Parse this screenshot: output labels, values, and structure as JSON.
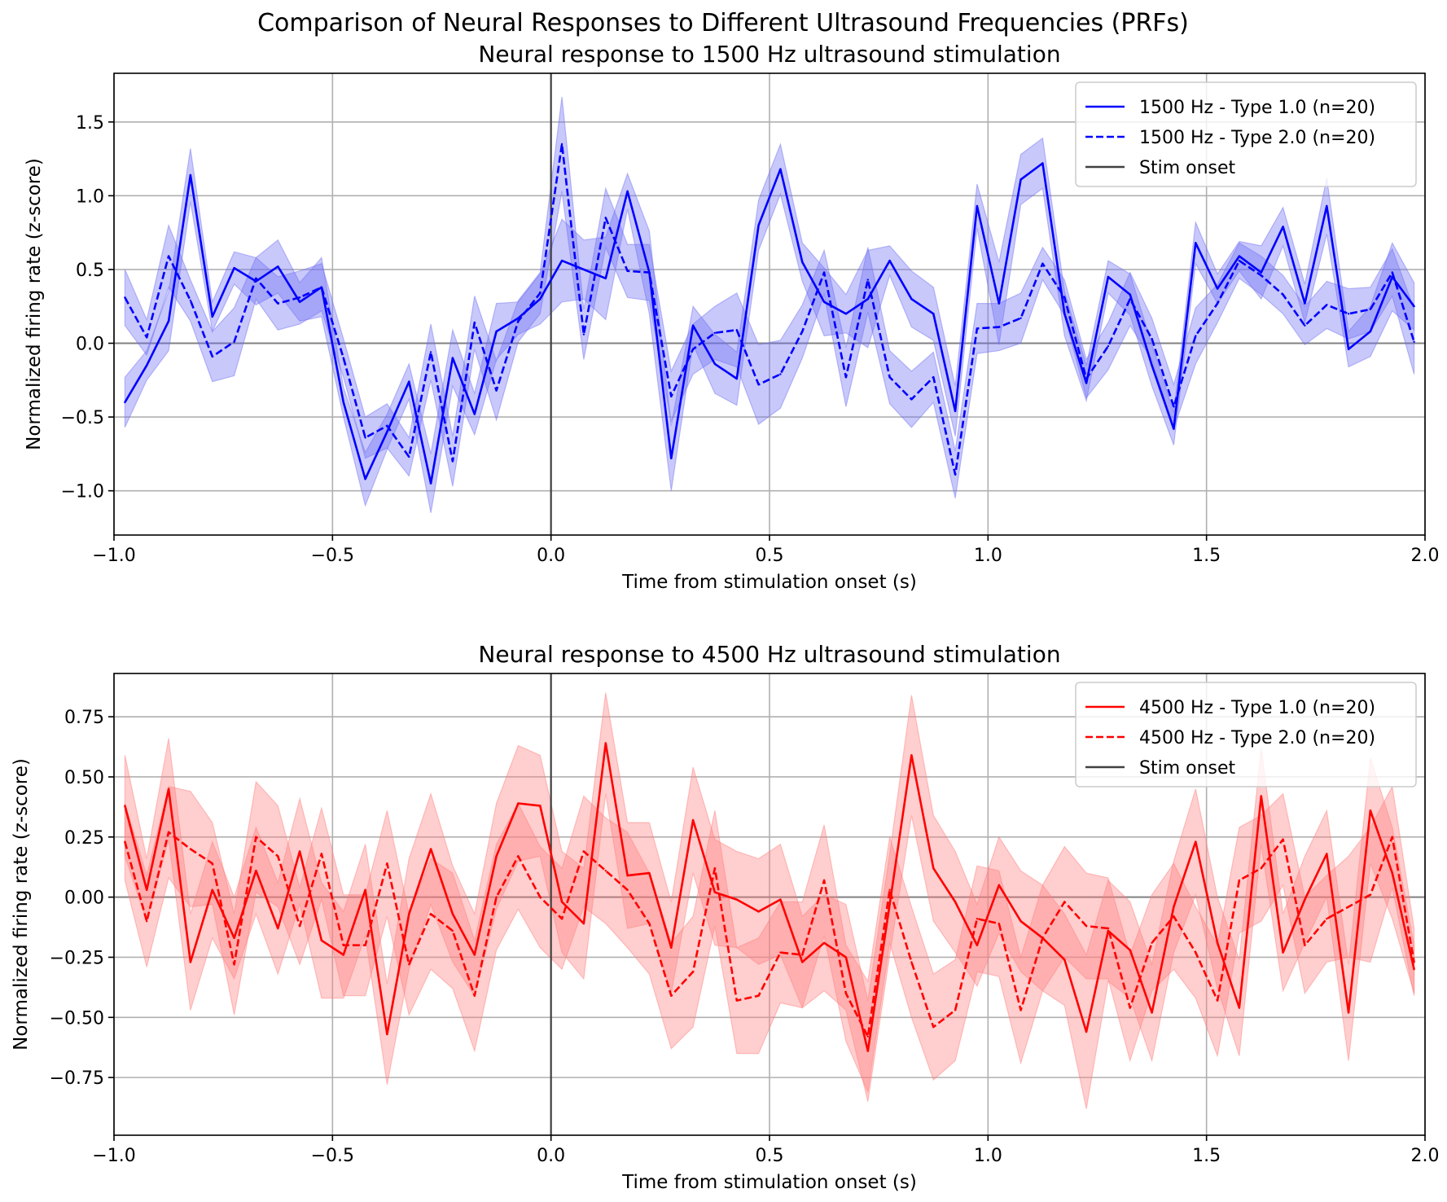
{
  "figure": {
    "suptitle": "Comparison of Neural Responses to Different Ultrasound Frequencies (PRFs)"
  },
  "chart_data": [
    {
      "type": "line",
      "title": "Neural response to 1500 Hz ultrasound stimulation",
      "xlabel": "Time from stimulation onset (s)",
      "ylabel": "Normalized firing rate (z-score)",
      "xlim": [
        -1.0,
        2.0
      ],
      "ylim": [
        -1.3,
        1.83
      ],
      "xticks": [
        -1.0,
        -0.5,
        0.0,
        0.5,
        1.0,
        1.5,
        2.0
      ],
      "xtick_labels": [
        "−1.0",
        "−0.5",
        "0.0",
        "0.5",
        "1.0",
        "1.5",
        "2.0"
      ],
      "yticks": [
        -1.0,
        -0.5,
        0.0,
        0.5,
        1.0,
        1.5
      ],
      "ytick_labels": [
        "−1.0",
        "−0.5",
        "0.0",
        "0.5",
        "1.0",
        "1.5"
      ],
      "grid": true,
      "legend_position": "top-right",
      "color": "#0000ff",
      "band_color": "#6f6ff5",
      "stim_onset": {
        "x": 0.0,
        "label": "Stim onset",
        "color": "#404040"
      },
      "x": [
        -0.975,
        -0.925,
        -0.875,
        -0.825,
        -0.775,
        -0.725,
        -0.675,
        -0.625,
        -0.575,
        -0.525,
        -0.475,
        -0.425,
        -0.375,
        -0.325,
        -0.275,
        -0.225,
        -0.175,
        -0.125,
        -0.075,
        -0.025,
        0.025,
        0.075,
        0.125,
        0.175,
        0.225,
        0.275,
        0.325,
        0.375,
        0.425,
        0.475,
        0.525,
        0.575,
        0.625,
        0.675,
        0.725,
        0.775,
        0.825,
        0.875,
        0.925,
        0.975,
        1.025,
        1.075,
        1.125,
        1.175,
        1.225,
        1.275,
        1.325,
        1.375,
        1.425,
        1.475,
        1.525,
        1.575,
        1.625,
        1.675,
        1.725,
        1.775,
        1.825,
        1.875,
        1.925,
        1.975
      ],
      "series": [
        {
          "name": "1500 Hz - Type 1.0 (n=20)",
          "style": "solid",
          "values": [
            -0.4,
            -0.15,
            0.15,
            1.14,
            0.18,
            0.51,
            0.42,
            0.52,
            0.28,
            0.38,
            -0.4,
            -0.92,
            -0.6,
            -0.26,
            -0.95,
            -0.1,
            -0.48,
            0.08,
            0.17,
            0.3,
            0.56,
            0.5,
            0.44,
            1.03,
            0.48,
            -0.78,
            0.12,
            -0.14,
            -0.24,
            0.8,
            1.18,
            0.55,
            0.28,
            0.2,
            0.3,
            0.56,
            0.3,
            0.2,
            -0.46,
            0.93,
            0.27,
            1.11,
            1.22,
            0.2,
            -0.27,
            0.45,
            0.33,
            -0.15,
            -0.58,
            0.68,
            0.37,
            0.59,
            0.48,
            0.79,
            0.27,
            0.93,
            -0.04,
            0.08,
            0.45,
            0.25
          ],
          "error": [
            0.17,
            0.1,
            0.2,
            0.18,
            0.1,
            0.11,
            0.16,
            0.18,
            0.13,
            0.2,
            0.1,
            0.18,
            0.12,
            0.12,
            0.2,
            0.19,
            0.14,
            0.19,
            0.11,
            0.17,
            0.28,
            0.2,
            0.28,
            0.12,
            0.28,
            0.22,
            0.13,
            0.2,
            0.18,
            0.17,
            0.17,
            0.13,
            0.23,
            0.13,
            0.33,
            0.1,
            0.19,
            0.18,
            0.17,
            0.15,
            0.28,
            0.17,
            0.17,
            0.15,
            0.12,
            0.11,
            0.14,
            0.14,
            0.11,
            0.14,
            0.1,
            0.1,
            0.18,
            0.13,
            0.13,
            0.19,
            0.12,
            0.17,
            0.23,
            0.16
          ]
        },
        {
          "name": "1500 Hz - Type 2.0 (n=20)",
          "style": "dashed",
          "values": [
            0.31,
            0.04,
            0.59,
            0.29,
            -0.09,
            0.01,
            0.44,
            0.27,
            0.31,
            0.38,
            -0.1,
            -0.64,
            -0.56,
            -0.77,
            -0.06,
            -0.8,
            0.14,
            -0.32,
            0.15,
            0.34,
            1.35,
            0.06,
            0.85,
            0.49,
            0.48,
            -0.36,
            -0.04,
            0.07,
            0.09,
            -0.28,
            -0.21,
            0.08,
            0.48,
            -0.23,
            0.43,
            -0.23,
            -0.38,
            -0.23,
            -0.89,
            0.1,
            0.11,
            0.17,
            0.54,
            0.31,
            -0.24,
            -0.02,
            0.3,
            0.03,
            -0.43,
            0.05,
            0.27,
            0.56,
            0.46,
            0.33,
            0.12,
            0.26,
            0.2,
            0.23,
            0.48,
            0.01
          ],
          "error": [
            0.19,
            0.12,
            0.21,
            0.14,
            0.17,
            0.23,
            0.14,
            0.18,
            0.18,
            0.16,
            0.13,
            0.14,
            0.15,
            0.13,
            0.19,
            0.17,
            0.18,
            0.2,
            0.14,
            0.14,
            0.32,
            0.17,
            0.2,
            0.18,
            0.19,
            0.17,
            0.17,
            0.18,
            0.25,
            0.27,
            0.23,
            0.18,
            0.15,
            0.2,
            0.22,
            0.18,
            0.19,
            0.17,
            0.16,
            0.17,
            0.16,
            0.17,
            0.11,
            0.12,
            0.13,
            0.16,
            0.18,
            0.14,
            0.15,
            0.19,
            0.13,
            0.12,
            0.13,
            0.13,
            0.13,
            0.16,
            0.17,
            0.15,
            0.16,
            0.22
          ]
        }
      ]
    },
    {
      "type": "line",
      "title": "Neural response to 4500 Hz ultrasound stimulation",
      "xlabel": "Time from stimulation onset (s)",
      "ylabel": "Normalized firing rate (z-score)",
      "xlim": [
        -1.0,
        2.0
      ],
      "ylim": [
        -0.99,
        0.93
      ],
      "xticks": [
        -1.0,
        -0.5,
        0.0,
        0.5,
        1.0,
        1.5,
        2.0
      ],
      "xtick_labels": [
        "−1.0",
        "−0.5",
        "0.0",
        "0.5",
        "1.0",
        "1.5",
        "2.0"
      ],
      "yticks": [
        -0.75,
        -0.5,
        -0.25,
        0.0,
        0.25,
        0.5,
        0.75
      ],
      "ytick_labels": [
        "−0.75",
        "−0.50",
        "−0.25",
        "0.00",
        "0.25",
        "0.50",
        "0.75"
      ],
      "grid": true,
      "legend_position": "top-right",
      "color": "#ff0000",
      "band_color": "#ff7f7f",
      "stim_onset": {
        "x": 0.0,
        "label": "Stim onset",
        "color": "#404040"
      },
      "x": [
        -0.975,
        -0.925,
        -0.875,
        -0.825,
        -0.775,
        -0.725,
        -0.675,
        -0.625,
        -0.575,
        -0.525,
        -0.475,
        -0.425,
        -0.375,
        -0.325,
        -0.275,
        -0.225,
        -0.175,
        -0.125,
        -0.075,
        -0.025,
        0.025,
        0.075,
        0.125,
        0.175,
        0.225,
        0.275,
        0.325,
        0.375,
        0.425,
        0.475,
        0.525,
        0.575,
        0.625,
        0.675,
        0.725,
        0.775,
        0.825,
        0.875,
        0.925,
        0.975,
        1.025,
        1.075,
        1.125,
        1.175,
        1.225,
        1.275,
        1.325,
        1.375,
        1.425,
        1.475,
        1.525,
        1.575,
        1.625,
        1.675,
        1.725,
        1.775,
        1.825,
        1.875,
        1.925,
        1.975
      ],
      "series": [
        {
          "name": "4500 Hz - Type 1.0 (n=20)",
          "style": "solid",
          "values": [
            0.38,
            0.03,
            0.45,
            -0.27,
            0.03,
            -0.17,
            0.11,
            -0.13,
            0.19,
            -0.18,
            -0.24,
            0.03,
            -0.57,
            -0.07,
            0.2,
            -0.07,
            -0.24,
            0.17,
            0.39,
            0.38,
            -0.02,
            -0.11,
            0.64,
            0.09,
            0.1,
            -0.21,
            0.32,
            0.02,
            -0.01,
            -0.06,
            -0.01,
            -0.27,
            -0.19,
            -0.25,
            -0.64,
            -0.03,
            0.59,
            0.12,
            -0.02,
            -0.2,
            0.05,
            -0.1,
            -0.17,
            -0.26,
            -0.56,
            -0.14,
            -0.22,
            -0.48,
            -0.04,
            0.23,
            -0.19,
            -0.46,
            0.42,
            -0.23,
            -0.01,
            0.18,
            -0.48,
            0.36,
            0.1,
            -0.3
          ],
          "error": [
            0.21,
            0.13,
            0.21,
            0.2,
            0.2,
            0.17,
            0.18,
            0.19,
            0.22,
            0.24,
            0.18,
            0.19,
            0.21,
            0.23,
            0.23,
            0.2,
            0.17,
            0.22,
            0.24,
            0.21,
            0.21,
            0.23,
            0.21,
            0.22,
            0.21,
            0.19,
            0.22,
            0.22,
            0.2,
            0.22,
            0.23,
            0.19,
            0.2,
            0.22,
            0.21,
            0.21,
            0.25,
            0.22,
            0.21,
            0.17,
            0.2,
            0.21,
            0.22,
            0.19,
            0.32,
            0.21,
            0.2,
            0.2,
            0.19,
            0.22,
            0.19,
            0.2,
            0.2,
            0.16,
            0.18,
            0.18,
            0.2,
            0.22,
            0.19,
            0.1
          ]
        },
        {
          "name": "4500 Hz - Type 2.0 (n=20)",
          "style": "dashed",
          "values": [
            0.23,
            -0.1,
            0.27,
            0.2,
            0.14,
            -0.28,
            0.25,
            0.17,
            -0.12,
            0.18,
            -0.2,
            -0.2,
            0.14,
            -0.28,
            -0.07,
            -0.14,
            -0.41,
            0.0,
            0.17,
            0.0,
            -0.09,
            0.19,
            0.11,
            0.03,
            -0.11,
            -0.41,
            -0.31,
            0.12,
            -0.43,
            -0.41,
            -0.23,
            -0.24,
            0.07,
            -0.4,
            -0.58,
            0.03,
            -0.27,
            -0.54,
            -0.47,
            -0.09,
            -0.11,
            -0.47,
            -0.17,
            -0.02,
            -0.12,
            -0.13,
            -0.46,
            -0.19,
            -0.08,
            -0.23,
            -0.43,
            0.07,
            0.12,
            0.24,
            -0.2,
            -0.09,
            -0.04,
            0.01,
            0.25,
            -0.27
          ],
          "error": [
            0.16,
            0.19,
            0.19,
            0.24,
            0.17,
            0.21,
            0.23,
            0.21,
            0.16,
            0.19,
            0.21,
            0.21,
            0.22,
            0.21,
            0.23,
            0.24,
            0.23,
            0.22,
            0.22,
            0.21,
            0.21,
            0.23,
            0.22,
            0.24,
            0.21,
            0.22,
            0.23,
            0.24,
            0.22,
            0.24,
            0.21,
            0.22,
            0.23,
            0.2,
            0.23,
            0.22,
            0.23,
            0.22,
            0.21,
            0.22,
            0.22,
            0.22,
            0.22,
            0.23,
            0.22,
            0.21,
            0.22,
            0.2,
            0.22,
            0.19,
            0.23,
            0.22,
            0.22,
            0.19,
            0.2,
            0.18,
            0.21,
            0.28,
            0.21,
            0.14
          ]
        }
      ]
    }
  ]
}
